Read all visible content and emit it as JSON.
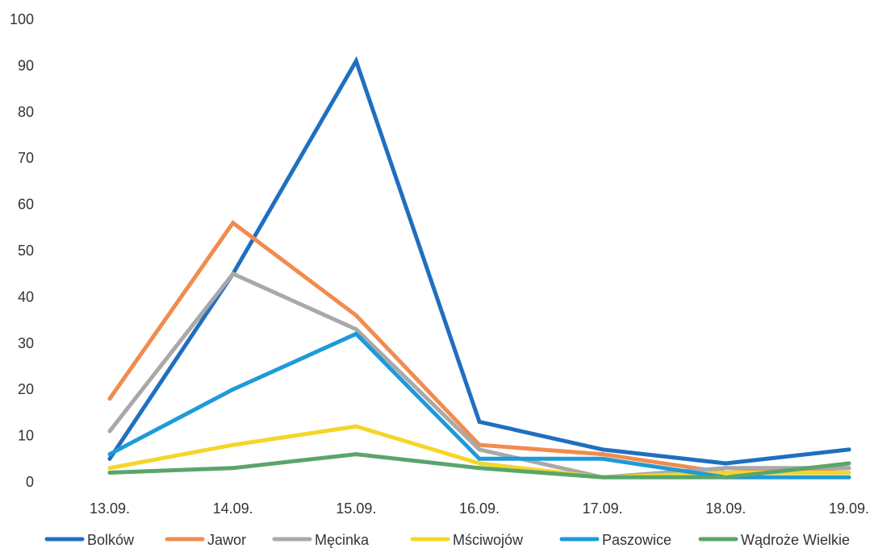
{
  "chart_data": {
    "type": "line",
    "title": "",
    "xlabel": "",
    "ylabel": "",
    "ylim": [
      0,
      100
    ],
    "yticks": [
      0,
      10,
      20,
      30,
      40,
      50,
      60,
      70,
      80,
      90,
      100
    ],
    "grid": false,
    "legend": "bottom",
    "categories": [
      "13.09.",
      "14.09.",
      "15.09.",
      "16.09.",
      "17.09.",
      "18.09.",
      "19.09."
    ],
    "series": [
      {
        "name": "Bolków",
        "color": "#1f6fc0",
        "values": [
          5,
          45,
          91,
          13,
          7,
          4,
          7
        ]
      },
      {
        "name": "Jawor",
        "color": "#f08c4f",
        "values": [
          18,
          56,
          36,
          8,
          6,
          2,
          3
        ]
      },
      {
        "name": "Męcinka",
        "color": "#a9a9a9",
        "values": [
          11,
          45,
          33,
          7,
          1,
          3,
          3
        ]
      },
      {
        "name": "Mściwojów",
        "color": "#f5d628",
        "values": [
          3,
          8,
          12,
          4,
          1,
          2,
          2
        ]
      },
      {
        "name": "Paszowice",
        "color": "#1f9ad9",
        "values": [
          6,
          20,
          32,
          5,
          5,
          1,
          1
        ]
      },
      {
        "name": "Wądroże Wielkie",
        "color": "#5aa56b",
        "values": [
          2,
          3,
          6,
          3,
          1,
          1,
          4
        ]
      }
    ]
  }
}
